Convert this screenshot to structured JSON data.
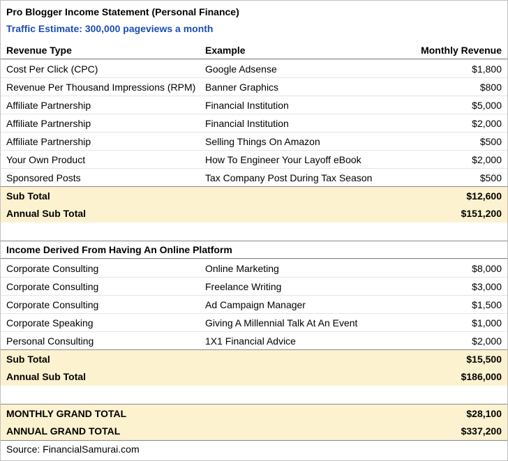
{
  "title": "Pro Blogger Income Statement (Personal Finance)",
  "subtitle": "Traffic Estimate: 300,000 pageviews a month",
  "columns": {
    "type": "Revenue Type",
    "example": "Example",
    "amount": "Monthly Revenue"
  },
  "section1": {
    "rows": [
      {
        "type": "Cost Per Click (CPC)",
        "example": "Google Adsense",
        "amount": "$1,800"
      },
      {
        "type": "Revenue Per Thousand Impressions (RPM)",
        "example": "Banner Graphics",
        "amount": "$800"
      },
      {
        "type": "Affiliate Partnership",
        "example": "Financial Institution",
        "amount": "$5,000"
      },
      {
        "type": "Affiliate Partnership",
        "example": "Financial Institution",
        "amount": "$2,000"
      },
      {
        "type": "Affiliate Partnership",
        "example": "Selling Things On Amazon",
        "amount": "$500"
      },
      {
        "type": "Your Own Product",
        "example": "How To Engineer Your Layoff eBook",
        "amount": "$2,000"
      },
      {
        "type": "Sponsored Posts",
        "example": "Tax Company Post During Tax Season",
        "amount": "$500"
      }
    ],
    "subtotal_label": "Sub Total",
    "subtotal_value": "$12,600",
    "annual_label": "Annual Sub Total",
    "annual_value": "$151,200"
  },
  "section2": {
    "header": "Income Derived From Having An Online Platform",
    "rows": [
      {
        "type": "Corporate Consulting",
        "example": "Online Marketing",
        "amount": "$8,000"
      },
      {
        "type": "Corporate Consulting",
        "example": "Freelance Writing",
        "amount": "$3,000"
      },
      {
        "type": "Corporate Consulting",
        "example": "Ad Campaign Manager",
        "amount": "$1,500"
      },
      {
        "type": "Corporate Speaking",
        "example": "Giving A Millennial Talk At An Event",
        "amount": "$1,000"
      },
      {
        "type": "Personal Consulting",
        "example": "1X1 Financial Advice",
        "amount": "$2,000"
      }
    ],
    "subtotal_label": "Sub Total",
    "subtotal_value": "$15,500",
    "annual_label": "Annual Sub Total",
    "annual_value": "$186,000"
  },
  "grand": {
    "monthly_label": "MONTHLY GRAND TOTAL",
    "monthly_value": "$28,100",
    "annual_label": "ANNUAL GRAND TOTAL",
    "annual_value": "$337,200"
  },
  "source": "Source: FinancialSamurai.com",
  "colors": {
    "highlight_bg": "#fdf2d0",
    "subtitle_color": "#1a4db3",
    "border_light": "#e5e5e5",
    "border_dark": "#888888",
    "outer_border": "#c0c0c0"
  }
}
